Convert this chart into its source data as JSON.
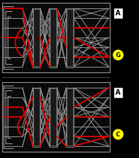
{
  "bg_color": "#000000",
  "gray": "#999999",
  "red": "#dd0000",
  "white": "#ffffff",
  "yellow": "#ffff00",
  "dark_gray": "#333333",
  "n_wires": 7,
  "panel1": {
    "label_in": "A",
    "label_out": "G",
    "red_path_fwd": [
      3,
      1,
      4,
      2,
      5
    ],
    "red_path_back": [
      5,
      3,
      0,
      4,
      1
    ]
  },
  "panel2": {
    "label_in": "A",
    "label_out": "C",
    "red_path_fwd": [
      3,
      5,
      0,
      2,
      4
    ],
    "red_path_back": [
      4,
      1,
      5,
      3,
      2
    ]
  }
}
